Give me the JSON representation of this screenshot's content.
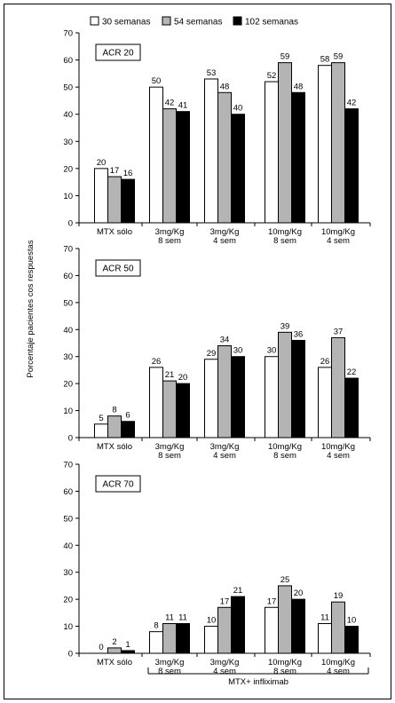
{
  "chart_data": {
    "type": "bar",
    "ylabel": "Porcentaje pacientes cos respuestas",
    "group_label": "MTX+ infliximab",
    "legend": [
      {
        "name": "30 semanas",
        "color": "#ffffff"
      },
      {
        "name": "54 semanas",
        "color": "#b4b4b4"
      },
      {
        "name": "102 semanas",
        "color": "#000000"
      }
    ],
    "legend_position": "top-right",
    "categories": [
      [
        "MTX sólo"
      ],
      [
        "3mg/Kg",
        "8 sem"
      ],
      [
        "3mg/Kg",
        "4 sem"
      ],
      [
        "10mg/Kg",
        "8 sem"
      ],
      [
        "10mg/Kg",
        "4 sem"
      ]
    ],
    "ylim": [
      0,
      70
    ],
    "yticks": [
      0,
      10,
      20,
      30,
      40,
      50,
      60,
      70
    ],
    "grid": false,
    "panels": [
      {
        "title": "ACR 20",
        "series": [
          {
            "name": "30 semanas",
            "values": [
              20,
              50,
              53,
              52,
              58
            ]
          },
          {
            "name": "54 semanas",
            "values": [
              17,
              42,
              48,
              59,
              59
            ]
          },
          {
            "name": "102 semanas",
            "values": [
              16,
              41,
              40,
              48,
              42
            ]
          }
        ]
      },
      {
        "title": "ACR 50",
        "series": [
          {
            "name": "30 semanas",
            "values": [
              5,
              26,
              29,
              30,
              26
            ]
          },
          {
            "name": "54 semanas",
            "values": [
              8,
              21,
              34,
              39,
              37
            ]
          },
          {
            "name": "102 semanas",
            "values": [
              6,
              20,
              30,
              36,
              22
            ]
          }
        ]
      },
      {
        "title": "ACR 70",
        "series": [
          {
            "name": "30 semanas",
            "values": [
              0,
              8,
              10,
              17,
              11
            ]
          },
          {
            "name": "54 semanas",
            "values": [
              2,
              11,
              17,
              25,
              19
            ]
          },
          {
            "name": "102 semanas",
            "values": [
              1,
              11,
              21,
              20,
              10
            ]
          }
        ]
      }
    ]
  }
}
